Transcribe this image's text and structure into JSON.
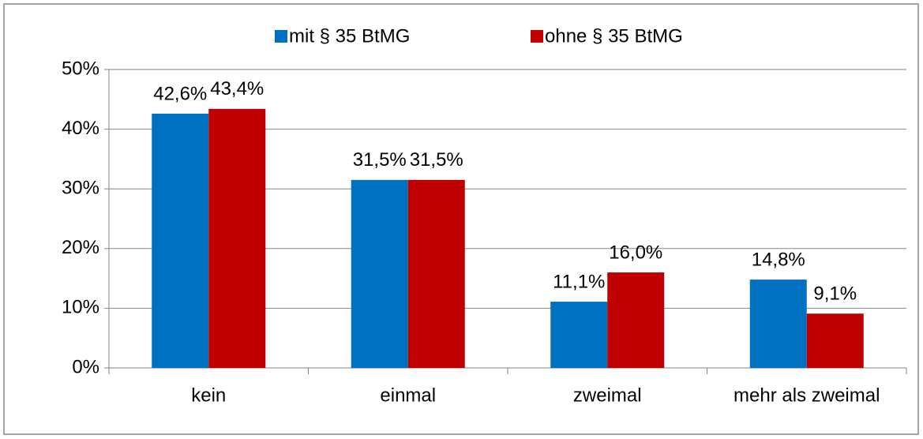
{
  "chart_data": {
    "type": "bar",
    "categories": [
      "kein",
      "einmal",
      "zweimal",
      "mehr als zweimal"
    ],
    "series": [
      {
        "name": "mit § 35 BtMG",
        "color": "#0070c0",
        "values": [
          42.6,
          31.5,
          11.1,
          14.8
        ],
        "value_labels": [
          "42,6%",
          "31,5%",
          "11,1%",
          "14,8%"
        ]
      },
      {
        "name": "ohne § 35 BtMG",
        "color": "#c00000",
        "values": [
          43.4,
          31.5,
          16.0,
          9.1
        ],
        "value_labels": [
          "43,4%",
          "31,5%",
          "16,0%",
          "9,1%"
        ]
      }
    ],
    "ylim": [
      0,
      50
    ],
    "yticks": [
      {
        "value": 0,
        "label": "0%"
      },
      {
        "value": 10,
        "label": "10%"
      },
      {
        "value": 20,
        "label": "20%"
      },
      {
        "value": 30,
        "label": "30%"
      },
      {
        "value": 40,
        "label": "40%"
      },
      {
        "value": 50,
        "label": "50%"
      }
    ],
    "grid": true,
    "legend": "top"
  }
}
